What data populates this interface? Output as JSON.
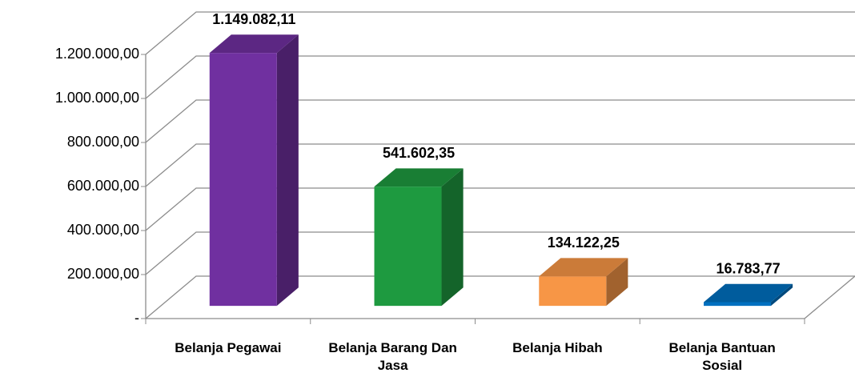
{
  "chart_data": {
    "type": "bar3d",
    "categories": [
      "Belanja Pegawai",
      "Belanja Barang Dan Jasa",
      "Belanja Hibah",
      "Belanja Bantuan Sosial"
    ],
    "values": [
      1149082.11,
      541602.35,
      134122.25,
      16783.77
    ],
    "value_labels": [
      "1.149.082,11",
      "541.602,35",
      "134.122,25",
      "16.783,77"
    ],
    "colors": [
      "#7030a0",
      "#1e9a40",
      "#f79646",
      "#0070c0"
    ],
    "ylim": [
      0,
      1200000
    ],
    "yticks": [
      {
        "value": 0,
        "label": "-"
      },
      {
        "value": 200000,
        "label": "200.000,00"
      },
      {
        "value": 400000,
        "label": "400.000,00"
      },
      {
        "value": 600000,
        "label": "600.000,00"
      },
      {
        "value": 800000,
        "label": "800.000,00"
      },
      {
        "value": 1000000,
        "label": "1.000.000,00"
      },
      {
        "value": 1200000,
        "label": "1.200.000,00"
      }
    ],
    "grid": true
  }
}
